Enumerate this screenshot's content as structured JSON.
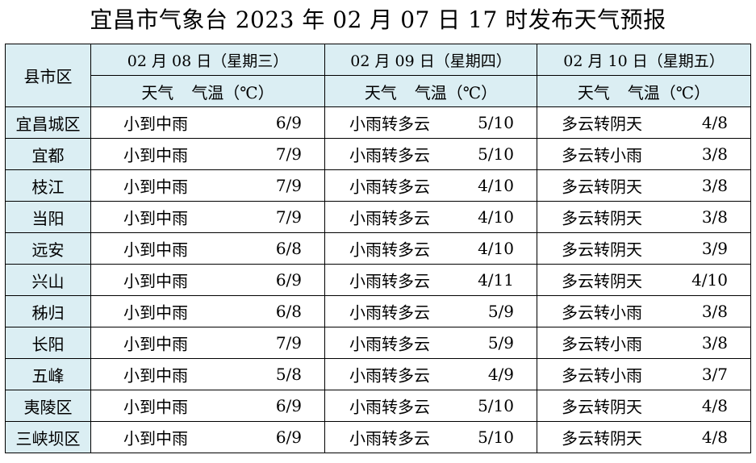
{
  "title": "宜昌市气象台 2023 年 02 月 07 日 17 时发布天气预报",
  "header": {
    "county_label": "县市区",
    "days": [
      {
        "date": "02 月 08 日（星期三）"
      },
      {
        "date": "02 月 09 日（星期四）"
      },
      {
        "date": "02 月 10 日（星期五）"
      }
    ],
    "weather_label": "天气",
    "temp_label": "气温（℃）"
  },
  "rows": [
    {
      "county": "宜昌城区",
      "d": [
        {
          "w": "小到中雨",
          "t": "6/9"
        },
        {
          "w": "小雨转多云",
          "t": "5/10"
        },
        {
          "w": "多云转阴天",
          "t": "4/8"
        }
      ]
    },
    {
      "county": "宜都",
      "d": [
        {
          "w": "小到中雨",
          "t": "7/9"
        },
        {
          "w": "小雨转多云",
          "t": "5/10"
        },
        {
          "w": "多云转小雨",
          "t": "3/8"
        }
      ]
    },
    {
      "county": "枝江",
      "d": [
        {
          "w": "小到中雨",
          "t": "7/9"
        },
        {
          "w": "小雨转多云",
          "t": "4/10"
        },
        {
          "w": "多云转阴天",
          "t": "3/8"
        }
      ]
    },
    {
      "county": "当阳",
      "d": [
        {
          "w": "小到中雨",
          "t": "7/9"
        },
        {
          "w": "小雨转多云",
          "t": "4/10"
        },
        {
          "w": "多云转阴天",
          "t": "3/8"
        }
      ]
    },
    {
      "county": "远安",
      "d": [
        {
          "w": "小到中雨",
          "t": "6/8"
        },
        {
          "w": "小雨转多云",
          "t": "4/10"
        },
        {
          "w": "多云转阴天",
          "t": "3/9"
        }
      ]
    },
    {
      "county": "兴山",
      "d": [
        {
          "w": "小到中雨",
          "t": "6/9"
        },
        {
          "w": "小雨转多云",
          "t": "4/11"
        },
        {
          "w": "多云转阴天",
          "t": "4/10"
        }
      ]
    },
    {
      "county": "秭归",
      "d": [
        {
          "w": "小到中雨",
          "t": "6/8"
        },
        {
          "w": "小雨转多云",
          "t": "5/9"
        },
        {
          "w": "多云转小雨",
          "t": "3/8"
        }
      ]
    },
    {
      "county": "长阳",
      "d": [
        {
          "w": "小到中雨",
          "t": "7/9"
        },
        {
          "w": "小雨转多云",
          "t": "5/9"
        },
        {
          "w": "多云转小雨",
          "t": "3/8"
        }
      ]
    },
    {
      "county": "五峰",
      "d": [
        {
          "w": "小到中雨",
          "t": "5/8"
        },
        {
          "w": "小雨转多云",
          "t": "4/9"
        },
        {
          "w": "多云转小雨",
          "t": "3/7"
        }
      ]
    },
    {
      "county": "夷陵区",
      "d": [
        {
          "w": "小到中雨",
          "t": "6/9"
        },
        {
          "w": "小雨转多云",
          "t": "5/10"
        },
        {
          "w": "多云转阴天",
          "t": "4/8"
        }
      ]
    },
    {
      "county": "三峡坝区",
      "d": [
        {
          "w": "小到中雨",
          "t": "6/9"
        },
        {
          "w": "小雨转多云",
          "t": "5/10"
        },
        {
          "w": "多云转阴天",
          "t": "4/8"
        }
      ]
    }
  ],
  "colors": {
    "header_bg": "#dbeef3",
    "border": "#000000"
  }
}
